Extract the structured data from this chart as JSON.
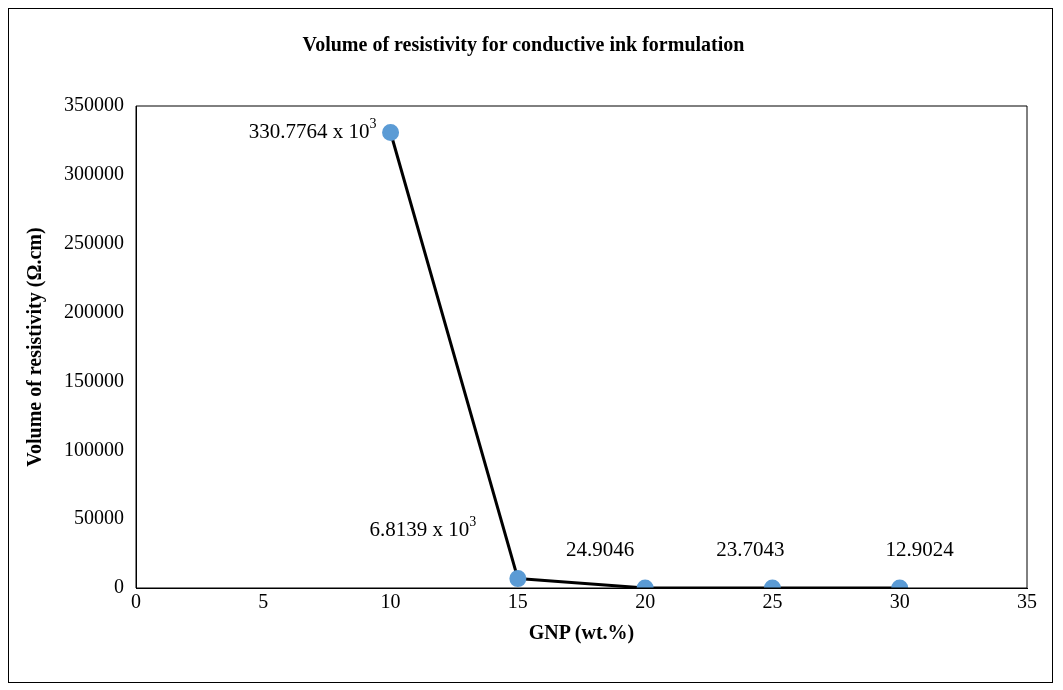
{
  "chart_data": {
    "type": "line",
    "title": "Volume of resistivity for conductive ink formulation",
    "xlabel": "GNP (wt.%)",
    "ylabel": "Volume of resistivity (Ω.cm)",
    "x": [
      10,
      15,
      20,
      25,
      30
    ],
    "series": [
      {
        "color": "#000000",
        "values": [
          330776.4,
          6813.9,
          24.9046,
          23.7043,
          12.9024
        ],
        "value_labels": [
          "330.7764 x 10$^{3}$",
          "6.8139 x 10$^{3}$",
          "24.9046",
          "23.7043",
          "12.9024"
        ]
      }
    ],
    "marker": "circle",
    "line_style": "solid",
    "xlim": [
      0,
      35
    ],
    "xticks": [
      0,
      5,
      10,
      15,
      20,
      25,
      30,
      35
    ],
    "ylim": [
      0,
      350000
    ],
    "yticks": [
      0,
      50000,
      100000,
      150000,
      200000,
      250000,
      300000,
      350000
    ],
    "grid": false,
    "legend": false
  }
}
